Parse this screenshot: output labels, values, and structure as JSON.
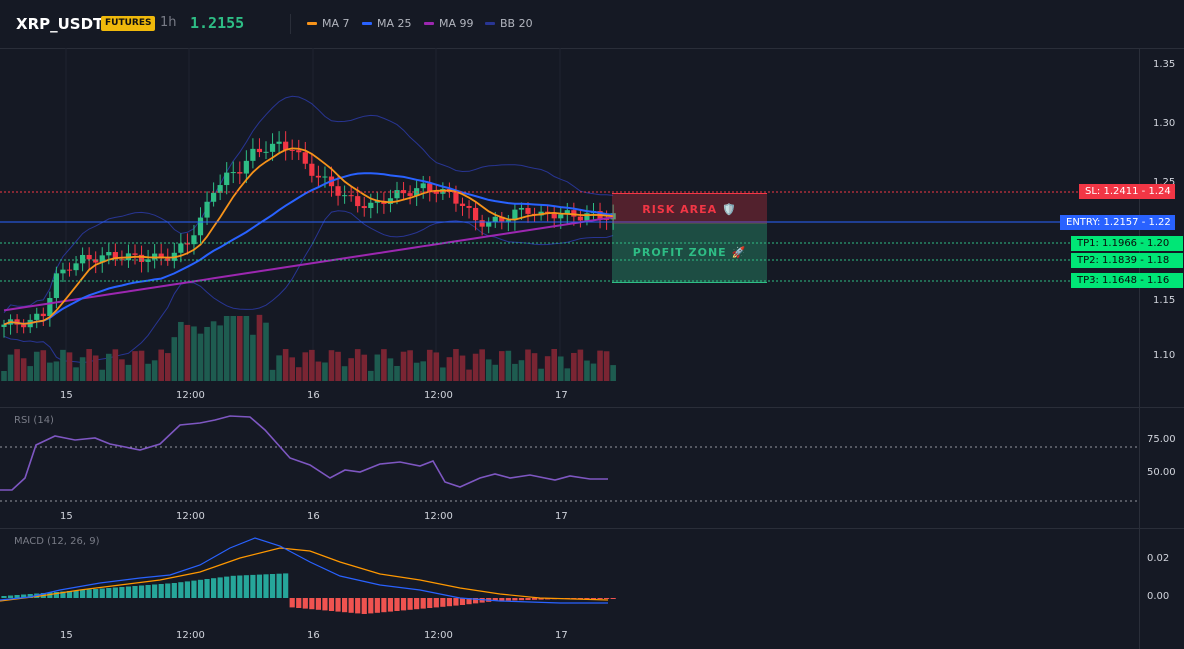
{
  "header": {
    "symbol": "XRP_USDT",
    "badge": "FUTURES",
    "timeframe": "1h",
    "price": "1.2155",
    "legend": [
      {
        "label": "MA 7",
        "color": "#f7931a"
      },
      {
        "label": "MA 25",
        "color": "#2962ff"
      },
      {
        "label": "MA 99",
        "color": "#9c27b0"
      },
      {
        "label": "BB 20",
        "color": "#283593"
      }
    ]
  },
  "price_axis": [
    "1.35",
    "1.30",
    "1.25",
    "1.22",
    "1.20",
    "1.18",
    "1.16",
    "1.15",
    "1.10"
  ],
  "time_axis": [
    "15",
    "12:00",
    "16",
    "12:00",
    "17"
  ],
  "levels": {
    "sl": {
      "text": "SL: 1.2411",
      "value": "1.24",
      "color": "#f23645"
    },
    "entry": {
      "text": "ENTRY: 1.2157",
      "value": "1.22",
      "color": "#2962ff"
    },
    "tp1": {
      "text": "TP1: 1.1966",
      "value": "1.20"
    },
    "tp2": {
      "text": "TP2: 1.1839",
      "value": "1.18"
    },
    "tp3": {
      "text": "TP3: 1.1648",
      "value": "1.16"
    }
  },
  "zones": {
    "risk": "RISK AREA 🛡️",
    "profit": "PROFIT ZONE 🚀"
  },
  "rsi": {
    "title": "RSI (14)",
    "axis": [
      "75.00",
      "50.00"
    ],
    "color": "#7e57c2"
  },
  "macd": {
    "title": "MACD (12, 26, 9)",
    "axis": [
      "0.02",
      "0.00"
    ]
  },
  "colors": {
    "up": "#2ebd85",
    "down": "#f23645",
    "vol_up": "#1e5c50",
    "vol_down": "#7a2533"
  }
}
